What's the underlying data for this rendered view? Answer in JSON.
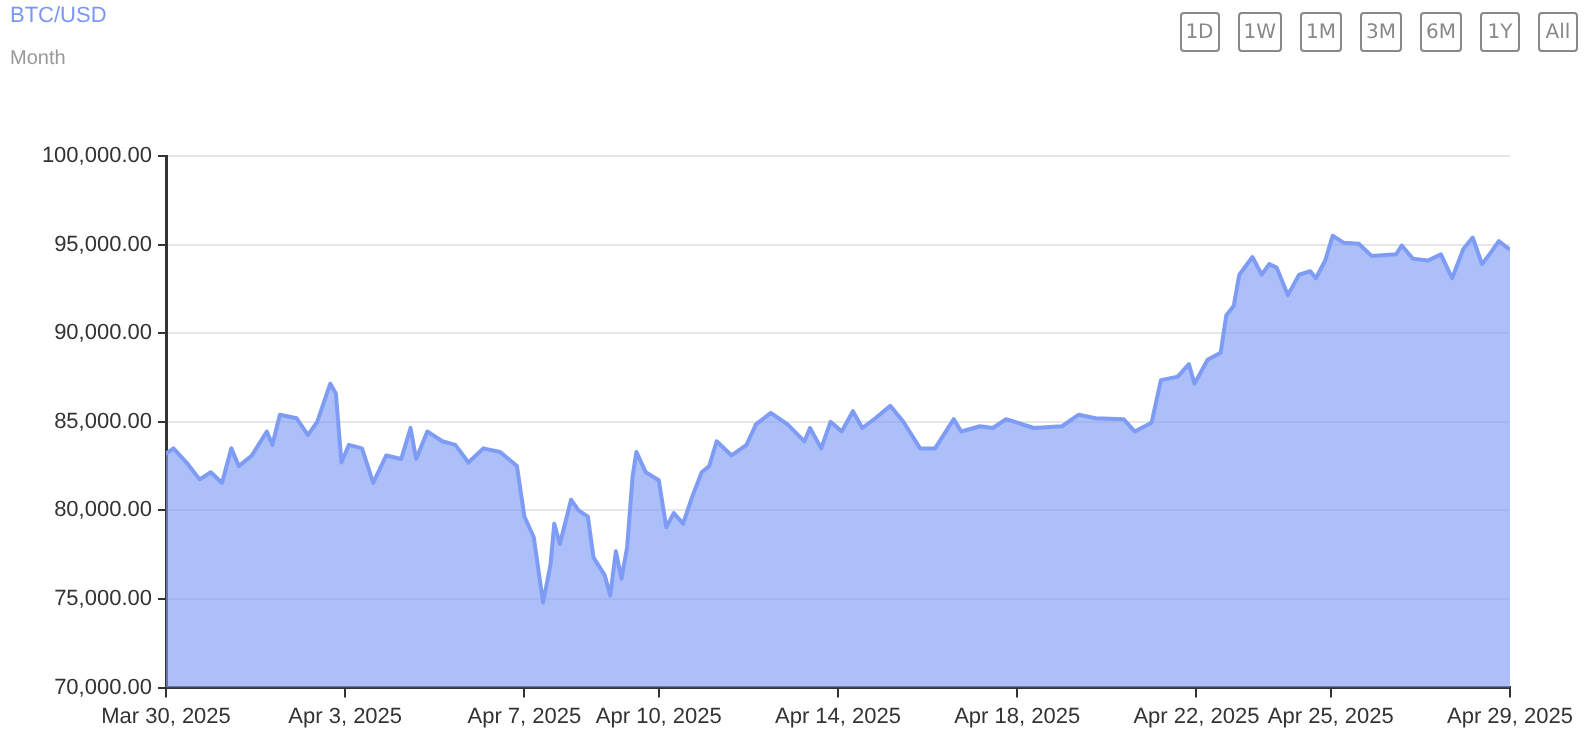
{
  "chart_data": {
    "type": "area",
    "title": "BTC/USD",
    "subtitle": "Month",
    "annotations": [
      "1D",
      "1W",
      "1M",
      "3M",
      "6M",
      "1Y",
      "All"
    ],
    "series": [
      {
        "color": "#7f9cf5",
        "x": [
          "2025-03-30T00:00",
          "2025-03-30T04:00",
          "2025-03-30T11:00",
          "2025-03-30T18:00",
          "2025-03-31T00:00",
          "2025-03-31T06:00",
          "2025-03-31T11:00",
          "2025-03-31T15:00",
          "2025-03-31T22:00",
          "2025-04-01T06:00",
          "2025-04-01T09:00",
          "2025-04-01T13:00",
          "2025-04-01T22:00",
          "2025-04-02T04:00",
          "2025-04-02T09:00",
          "2025-04-02T16:00",
          "2025-04-02T19:00",
          "2025-04-02T22:00",
          "2025-04-03T02:00",
          "2025-04-03T09:00",
          "2025-04-03T15:00",
          "2025-04-03T22:00",
          "2025-04-04T06:00",
          "2025-04-04T11:00",
          "2025-04-04T14:00",
          "2025-04-04T20:00",
          "2025-04-05T04:00",
          "2025-04-05T11:00",
          "2025-04-05T18:00",
          "2025-04-06T02:00",
          "2025-04-06T11:00",
          "2025-04-06T20:00",
          "2025-04-07T00:00",
          "2025-04-07T05:00",
          "2025-04-07T10:00",
          "2025-04-07T14:00",
          "2025-04-07T16:00",
          "2025-04-07T19:00",
          "2025-04-08T01:00",
          "2025-04-08T05:00",
          "2025-04-08T10:00",
          "2025-04-08T13:00",
          "2025-04-08T19:00",
          "2025-04-08T22:00",
          "2025-04-09T01:00",
          "2025-04-09T04:00",
          "2025-04-09T07:00",
          "2025-04-09T10:00",
          "2025-04-09T12:00",
          "2025-04-09T17:00",
          "2025-04-10T00:00",
          "2025-04-10T04:00",
          "2025-04-10T08:00",
          "2025-04-10T13:00",
          "2025-04-10T18:00",
          "2025-04-10T23:00",
          "2025-04-11T03:00",
          "2025-04-11T07:00",
          "2025-04-11T15:00",
          "2025-04-11T23:00",
          "2025-04-12T04:00",
          "2025-04-12T12:00",
          "2025-04-12T21:00",
          "2025-04-13T06:00",
          "2025-04-13T09:00",
          "2025-04-13T15:00",
          "2025-04-13T20:00",
          "2025-04-14T02:00",
          "2025-04-14T08:00",
          "2025-04-14T13:00",
          "2025-04-14T20:00",
          "2025-04-15T04:00",
          "2025-04-15T11:00",
          "2025-04-15T20:00",
          "2025-04-16T04:00",
          "2025-04-16T14:00",
          "2025-04-16T18:00",
          "2025-04-17T04:00",
          "2025-04-17T11:00",
          "2025-04-17T18:00",
          "2025-04-18T09:00",
          "2025-04-19T00:00",
          "2025-04-19T09:00",
          "2025-04-19T18:00",
          "2025-04-20T09:00",
          "2025-04-20T15:00",
          "2025-04-21T00:00",
          "2025-04-21T05:00",
          "2025-04-21T14:00",
          "2025-04-21T20:00",
          "2025-04-21T23:00",
          "2025-04-22T06:00",
          "2025-04-22T13:00",
          "2025-04-22T16:00",
          "2025-04-22T20:00",
          "2025-04-22T23:00",
          "2025-04-23T06:00",
          "2025-04-23T11:00",
          "2025-04-23T15:00",
          "2025-04-23T19:00",
          "2025-04-24T01:00",
          "2025-04-24T07:00",
          "2025-04-24T13:00",
          "2025-04-24T16:00",
          "2025-04-24T21:00",
          "2025-04-25T01:00",
          "2025-04-25T07:00",
          "2025-04-25T15:00",
          "2025-04-25T22:00",
          "2025-04-26T11:00",
          "2025-04-26T14:00",
          "2025-04-26T20:00",
          "2025-04-27T04:00",
          "2025-04-27T11:00",
          "2025-04-27T17:00",
          "2025-04-27T23:00",
          "2025-04-28T04:00",
          "2025-04-28T09:00",
          "2025-04-28T13:00",
          "2025-04-28T18:00",
          "2025-04-29T00:00"
        ],
        "values": [
          83200,
          83500,
          82700,
          81750,
          82150,
          81550,
          83500,
          82500,
          83100,
          84450,
          83700,
          85400,
          85200,
          84250,
          85000,
          87150,
          86600,
          82700,
          83700,
          83500,
          81550,
          83100,
          82900,
          84650,
          82900,
          84450,
          83900,
          83700,
          82700,
          83500,
          83300,
          82500,
          79650,
          78500,
          74800,
          76950,
          79250,
          78100,
          80600,
          80000,
          79650,
          77350,
          76350,
          75200,
          77700,
          76150,
          77900,
          81950,
          83300,
          82150,
          81700,
          79050,
          79850,
          79250,
          80800,
          82150,
          82500,
          83900,
          83100,
          83700,
          84850,
          85500,
          84850,
          83900,
          84650,
          83500,
          85000,
          84450,
          85600,
          84650,
          85200,
          85900,
          85000,
          83500,
          83500,
          85150,
          84450,
          84750,
          84650,
          85150,
          84650,
          84750,
          85400,
          85200,
          85150,
          84450,
          84950,
          87350,
          87550,
          88250,
          87150,
          88500,
          88900,
          91000,
          91550,
          93300,
          94300,
          93300,
          93900,
          93700,
          92150,
          93300,
          93500,
          93100,
          94100,
          95500,
          95100,
          95050,
          94350,
          94450,
          94950,
          94200,
          94100,
          94450,
          93100,
          94750,
          95400,
          93900,
          94450,
          95200,
          94700
        ]
      }
    ],
    "xlim": [
      "2025-03-30",
      "2025-04-29"
    ],
    "xticks": [
      {
        "value": "2025-03-30",
        "label": "Mar 30, 2025"
      },
      {
        "value": "2025-04-03",
        "label": "Apr 3, 2025"
      },
      {
        "value": "2025-04-07",
        "label": "Apr 7, 2025"
      },
      {
        "value": "2025-04-10",
        "label": "Apr 10, 2025"
      },
      {
        "value": "2025-04-14",
        "label": "Apr 14, 2025"
      },
      {
        "value": "2025-04-18",
        "label": "Apr 18, 2025"
      },
      {
        "value": "2025-04-22",
        "label": "Apr 22, 2025"
      },
      {
        "value": "2025-04-25",
        "label": "Apr 25, 2025"
      },
      {
        "value": "2025-04-29",
        "label": "Apr 29, 2025"
      }
    ],
    "ylim": [
      70000,
      100000
    ],
    "yticks": [
      {
        "value": 70000,
        "label": "70,000.00"
      },
      {
        "value": 75000,
        "label": "75,000.00"
      },
      {
        "value": 80000,
        "label": "80,000.00"
      },
      {
        "value": 85000,
        "label": "85,000.00"
      },
      {
        "value": 90000,
        "label": "90,000.00"
      },
      {
        "value": 95000,
        "label": "95,000.00"
      },
      {
        "value": 100000,
        "label": "100,000.00"
      }
    ],
    "grid": "y",
    "legend": false
  }
}
